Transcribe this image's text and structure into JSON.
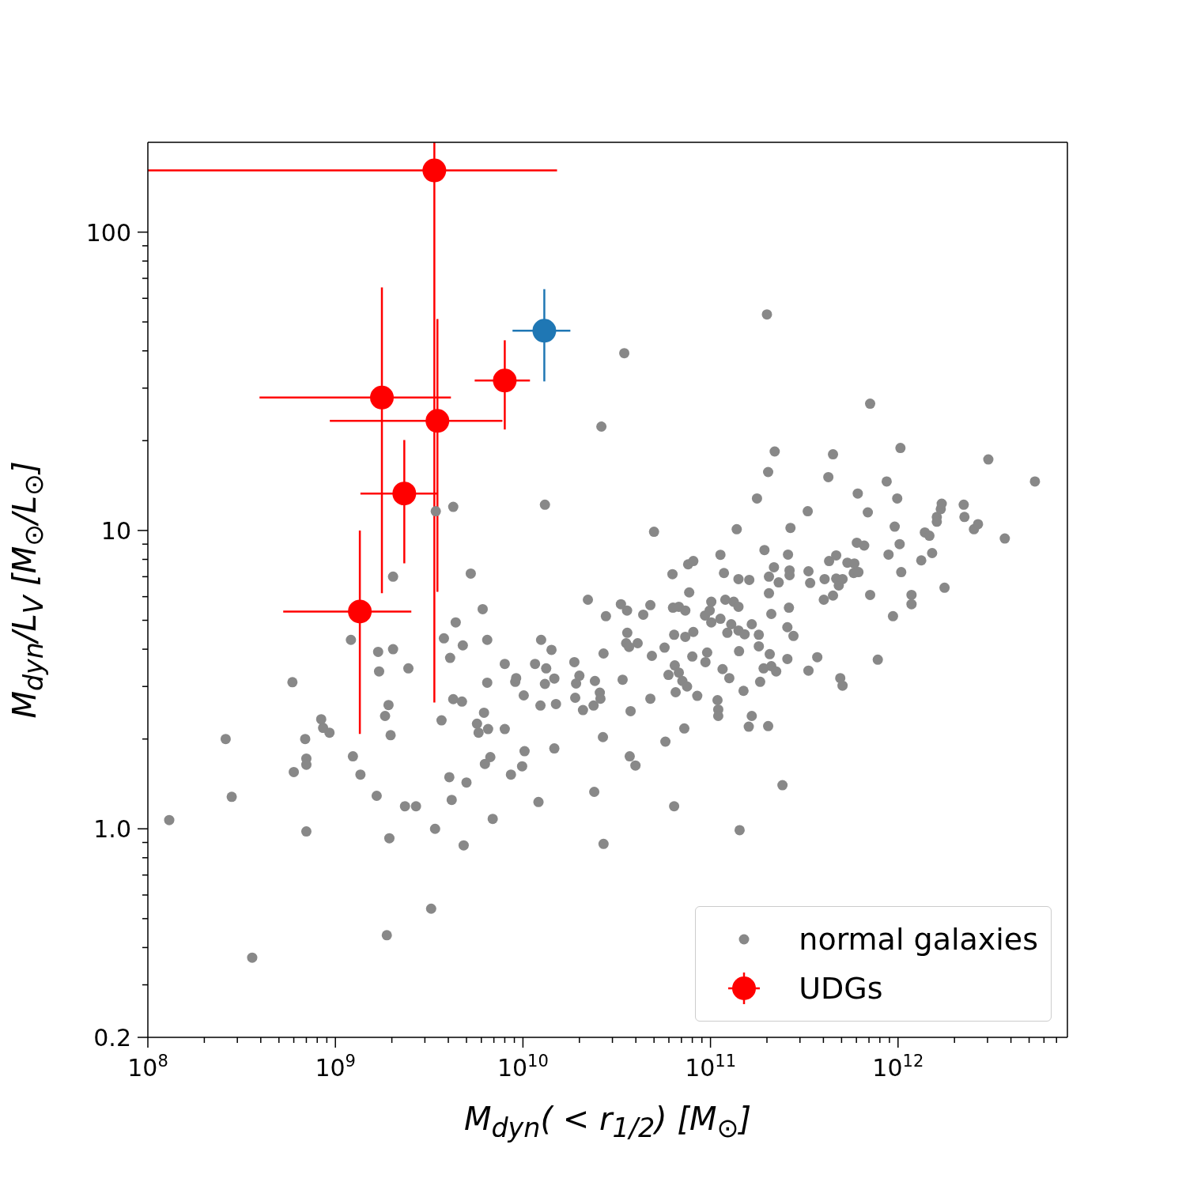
{
  "chart_data": {
    "type": "scatter",
    "xlabel": "M$_{dyn}$( < r$_{1/2}$) [M$_{⊙}$]",
    "ylabel": "M$_{dyn}$/L$_{V}$ [M$_{⊙}$/L$_{⊙}$]",
    "log": "xy",
    "marker": "circle",
    "legend": "bottom right",
    "xlim": [
      100000000.0,
      8000000000000.0
    ],
    "ylim": [
      0.2,
      200
    ],
    "xticks": [
      {
        "value": 100000000.0,
        "label": "10$^{8}$"
      },
      {
        "value": 200000000.0,
        "label": null
      },
      {
        "value": 300000000.0,
        "label": null
      },
      {
        "value": 400000000.0,
        "label": null
      },
      {
        "value": 500000000.0,
        "label": null
      },
      {
        "value": 600000000.0,
        "label": null
      },
      {
        "value": 700000000.0,
        "label": null
      },
      {
        "value": 800000000.0,
        "label": null
      },
      {
        "value": 900000000.0,
        "label": null
      },
      {
        "value": 1000000000.0,
        "label": "10$^{9}$"
      },
      {
        "value": 2000000000.0,
        "label": null
      },
      {
        "value": 3000000000.0,
        "label": null
      },
      {
        "value": 4000000000.0,
        "label": null
      },
      {
        "value": 5000000000.0,
        "label": null
      },
      {
        "value": 6000000000.0,
        "label": null
      },
      {
        "value": 7000000000.0,
        "label": null
      },
      {
        "value": 8000000000.0,
        "label": null
      },
      {
        "value": 9000000000.0,
        "label": null
      },
      {
        "value": 10000000000.0,
        "label": "10$^{10}$"
      },
      {
        "value": 20000000000.0,
        "label": null
      },
      {
        "value": 30000000000.0,
        "label": null
      },
      {
        "value": 40000000000.0,
        "label": null
      },
      {
        "value": 50000000000.0,
        "label": null
      },
      {
        "value": 60000000000.0,
        "label": null
      },
      {
        "value": 70000000000.0,
        "label": null
      },
      {
        "value": 80000000000.0,
        "label": null
      },
      {
        "value": 90000000000.0,
        "label": null
      },
      {
        "value": 100000000000.0,
        "label": "10$^{11}$"
      },
      {
        "value": 200000000000.0,
        "label": null
      },
      {
        "value": 300000000000.0,
        "label": null
      },
      {
        "value": 400000000000.0,
        "label": null
      },
      {
        "value": 500000000000.0,
        "label": null
      },
      {
        "value": 600000000000.0,
        "label": null
      },
      {
        "value": 700000000000.0,
        "label": null
      },
      {
        "value": 800000000000.0,
        "label": null
      },
      {
        "value": 900000000000.0,
        "label": null
      },
      {
        "value": 1000000000000.0,
        "label": "10$^{12}$"
      },
      {
        "value": 2000000000000.0,
        "label": null
      },
      {
        "value": 3000000000000.0,
        "label": null
      },
      {
        "value": 4000000000000.0,
        "label": null
      },
      {
        "value": 5000000000000.0,
        "label": null
      },
      {
        "value": 6000000000000.0,
        "label": null
      },
      {
        "value": 7000000000000.0,
        "label": null
      }
    ],
    "yticks": [
      0.2,
      {
        "value": 0.3,
        "label": null
      },
      {
        "value": 0.4,
        "label": null
      },
      {
        "value": 0.5,
        "label": null
      },
      {
        "value": 0.6,
        "label": null
      },
      {
        "value": 0.7,
        "label": null
      },
      {
        "value": 0.8,
        "label": null
      },
      {
        "value": 0.9,
        "label": null
      },
      {
        "value": 1,
        "label": "1.0"
      },
      {
        "value": 2,
        "label": null
      },
      {
        "value": 3,
        "label": null
      },
      {
        "value": 4,
        "label": null
      },
      {
        "value": 5,
        "label": null
      },
      {
        "value": 6,
        "label": null
      },
      {
        "value": 7,
        "label": null
      },
      {
        "value": 8,
        "label": null
      },
      {
        "value": 9,
        "label": null
      },
      10,
      {
        "value": 20,
        "label": null
      },
      {
        "value": 30,
        "label": null
      },
      {
        "value": 40,
        "label": null
      },
      {
        "value": 50,
        "label": null
      },
      {
        "value": 60,
        "label": null
      },
      {
        "value": 70,
        "label": null
      },
      {
        "value": 80,
        "label": null
      },
      {
        "value": 90,
        "label": null
      },
      100
    ],
    "series": [
      {
        "name": "normal galaxies",
        "color": "#888888",
        "x": [
          130000000.0,
          260000000.0,
          280000000.0,
          360000000.0,
          590000000.0,
          600000000.0,
          690000000.0,
          700000000.0,
          700000000.0,
          700000000.0,
          840000000.0,
          860000000.0,
          930000000.0,
          1210000000.0,
          1240000000.0,
          1360000000.0,
          1660000000.0,
          1690000000.0,
          1710000000.0,
          1880000000.0,
          1840000000.0,
          1920000000.0,
          1940000000.0,
          1970000000.0,
          2030000000.0,
          2030000000.0,
          2350000000.0,
          2450000000.0,
          2690000000.0,
          3240000000.0,
          3400000000.0,
          3430000000.0,
          4250000000.0,
          3680000000.0,
          3790000000.0,
          4090000000.0,
          4050000000.0,
          4170000000.0,
          4250000000.0,
          4380000000.0,
          4730000000.0,
          4780000000.0,
          4830000000.0,
          5000000000.0,
          5270000000.0,
          5690000000.0,
          5800000000.0,
          6100000000.0,
          6200000000.0,
          6270000000.0,
          6450000000.0,
          6450000000.0,
          6520000000.0,
          6700000000.0,
          6900000000.0,
          8000000000.0,
          8000000000.0,
          8630000000.0,
          9100000000.0,
          9200000000.0,
          9900000000.0,
          10100000000.0,
          10200000000.0,
          11600000000.0,
          12100000000.0,
          12400000000.0,
          12500000000.0,
          13100000000.0,
          13100000000.0,
          13300000000.0,
          14200000000.0,
          14700000000.0,
          14700000000.0,
          15000000000.0,
          18800000000.0,
          19000000000.0,
          19200000000.0,
          20000000000.0,
          20900000000.0,
          22200000000.0,
          23800000000.0,
          24000000000.0,
          24200000000.0,
          25700000000.0,
          25900000000.0,
          26200000000.0,
          26700000000.0,
          26900000000.0,
          26900000000.0,
          27700000000.0,
          33300000000.0,
          34000000000.0,
          34700000000.0,
          35500000000.0,
          35900000000.0,
          36000000000.0,
          36800000000.0,
          37100000000.0,
          37500000000.0,
          39800000000.0,
          40900000000.0,
          43800000000.0,
          47800000000.0,
          47800000000.0,
          48700000000.0,
          50000000000.0,
          56900000000.0,
          57500000000.0,
          59700000000.0,
          62700000000.0,
          63100000000.0,
          64000000000.0,
          64000000000.0,
          64500000000.0,
          65200000000.0,
          67800000000.0,
          67800000000.0,
          70800000000.0,
          72500000000.0,
          73400000000.0,
          73400000000.0,
          75000000000.0,
          76000000000.0,
          77000000000.0,
          80000000000.0,
          81000000000.0,
          81000000000.0,
          85000000000.0,
          93500000000.0,
          94000000000.0,
          96000000000.0,
          99000000000.0,
          101000000000.0,
          101000000000.0,
          109000000000.0,
          110000000000.0,
          110000000000.0,
          113000000000.0,
          113000000000.0,
          116000000000.0,
          118000000000.0,
          120000000000.0,
          123000000000.0,
          126000000000.0,
          129000000000.0,
          133000000000.0,
          138000000000.0,
          141000000000.0,
          141000000000.0,
          141000000000.0,
          142000000000.0,
          143000000000.0,
          150000000000.0,
          152000000000.0,
          160000000000.0,
          161000000000.0,
          166000000000.0,
          166000000000.0,
          177000000000.0,
          181000000000.0,
          181000000000.0,
          184000000000.0,
          192000000000.0,
          194000000000.0,
          200000000000.0,
          203000000000.0,
          203000000000.0,
          205000000000.0,
          205000000000.0,
          207000000000.0,
          211000000000.0,
          211000000000.0,
          218000000000.0,
          220000000000.0,
          224000000000.0,
          231000000000.0,
          242000000000.0,
          257000000000.0,
          257000000000.0,
          259000000000.0,
          262000000000.0,
          264000000000.0,
          264000000000.0,
          267000000000.0,
          277000000000.0,
          330000000000.0,
          333000000000.0,
          333000000000.0,
          340000000000.0,
          371000000000.0,
          402000000000.0,
          406000000000.0,
          425000000000.0,
          429000000000.0,
          450000000000.0,
          450000000000.0,
          468000000000.0,
          468000000000.0,
          483000000000.0,
          492000000000.0,
          506000000000.0,
          506000000000.0,
          537000000000.0,
          580000000000.0,
          585000000000.0,
          603000000000.0,
          610000000000.0,
          615000000000.0,
          660000000000.0,
          690000000000.0,
          710000000000.0,
          710000000000.0,
          780000000000.0,
          870000000000.0,
          890000000000.0,
          940000000000.0,
          960000000000.0,
          990000000000.0,
          1020000000000.0,
          1030000000000.0,
          1040000000000.0,
          1180000000000.0,
          1180000000000.0,
          1330000000000.0,
          1390000000000.0,
          1470000000000.0,
          1520000000000.0,
          1610000000000.0,
          1610000000000.0,
          1690000000000.0,
          1710000000000.0,
          1770000000000.0,
          2240000000000.0,
          2260000000000.0,
          2540000000000.0,
          2670000000000.0,
          3030000000000.0,
          3710000000000.0,
          5370000000000.0
        ],
        "values": [
          1.07,
          2.0,
          1.28,
          0.37,
          3.1,
          1.55,
          2.0,
          1.72,
          1.64,
          0.98,
          2.33,
          2.18,
          2.1,
          4.3,
          1.75,
          1.52,
          1.29,
          3.92,
          3.37,
          0.44,
          2.39,
          2.6,
          0.93,
          2.06,
          7.0,
          4.0,
          1.19,
          3.45,
          1.19,
          0.54,
          1.0,
          11.6,
          12.0,
          2.31,
          4.35,
          3.74,
          1.49,
          1.25,
          2.72,
          4.92,
          2.67,
          4.12,
          0.88,
          1.43,
          7.17,
          2.25,
          2.1,
          5.45,
          2.45,
          1.65,
          4.3,
          3.09,
          2.16,
          1.74,
          1.08,
          3.57,
          2.16,
          1.52,
          3.11,
          3.2,
          1.62,
          2.8,
          1.82,
          3.57,
          1.23,
          2.59,
          4.3,
          12.2,
          3.06,
          3.45,
          3.98,
          3.19,
          1.86,
          2.62,
          3.62,
          2.75,
          3.07,
          3.26,
          2.5,
          5.86,
          2.59,
          1.33,
          3.13,
          2.86,
          2.73,
          22.3,
          2.03,
          3.87,
          0.89,
          5.16,
          5.66,
          3.16,
          39.3,
          4.19,
          5.39,
          4.54,
          4.07,
          1.75,
          2.48,
          1.63,
          4.19,
          5.22,
          5.62,
          2.73,
          3.8,
          9.9,
          4.05,
          1.96,
          3.28,
          7.14,
          5.51,
          4.47,
          1.19,
          3.53,
          2.87,
          5.55,
          3.34,
          3.13,
          2.17,
          5.39,
          4.4,
          3.0,
          7.7,
          6.2,
          3.78,
          7.9,
          4.57,
          2.79,
          5.19,
          3.62,
          3.9,
          5.39,
          5.77,
          4.92,
          2.7,
          2.51,
          2.39,
          8.29,
          5.06,
          3.43,
          7.2,
          5.86,
          4.54,
          3.2,
          4.85,
          5.77,
          10.1,
          6.87,
          5.55,
          4.62,
          3.94,
          0.99,
          2.9,
          4.49,
          2.2,
          6.83,
          4.85,
          2.39,
          12.8,
          4.47,
          4.09,
          3.11,
          3.45,
          8.6,
          53,
          15.7,
          2.21,
          7.0,
          6.16,
          3.85,
          5.25,
          3.51,
          7.53,
          18.4,
          3.37,
          6.7,
          1.4,
          4.74,
          3.71,
          8.3,
          5.51,
          7.35,
          7.08,
          10.2,
          4.43,
          11.6,
          7.3,
          3.39,
          6.67,
          3.76,
          5.86,
          6.87,
          15.1,
          7.9,
          18.0,
          6.05,
          8.25,
          6.9,
          6.54,
          3.2,
          6.87,
          3.02,
          7.8,
          7.2,
          7.75,
          9.1,
          13.3,
          7.25,
          8.9,
          11.5,
          26.6,
          6.08,
          3.69,
          14.6,
          8.3,
          5.16,
          10.3,
          12.8,
          9.0,
          18.9,
          7.25,
          6.08,
          5.66,
          7.94,
          9.85,
          9.6,
          8.4,
          11.1,
          10.7,
          11.8,
          12.3,
          6.43,
          12.2,
          11.1,
          10.1,
          10.5,
          17.3,
          9.4,
          14.6
        ]
      },
      {
        "name": "UDGs",
        "color": "#ff0000",
        "x": [
          3370000000.0,
          1770000000.0,
          3500000000.0,
          8000000000.0,
          2330000000.0,
          1350000000.0
        ],
        "values": [
          161,
          27.9,
          23.3,
          31.8,
          13.3,
          5.35
        ],
        "xerrors": [
          [
            100000000.0,
            15200000000.0
          ],
          [
            394000000.0,
            4130000000.0
          ],
          [
            934000000.0,
            7770000000.0
          ],
          [
            5530000000.0,
            10900000000.0
          ],
          [
            1360000000.0,
            3460000000.0
          ],
          [
            527000000.0,
            2540000000.0
          ]
        ],
        "errors": [
          [
            2.65,
            200
          ],
          [
            6.16,
            65.3
          ],
          [
            6.23,
            51.1
          ],
          [
            21.8,
            43.4
          ],
          [
            7.76,
            20.1
          ],
          [
            2.08,
            10.0
          ]
        ]
      },
      {
        "color": "#1f77b4",
        "x": [
          13000000000.0
        ],
        "values": [
          46.7
        ],
        "xerrors": [
          [
            8800000000.0,
            17900000000.0
          ]
        ],
        "errors": [
          [
            31.6,
            64.4
          ]
        ]
      }
    ]
  }
}
